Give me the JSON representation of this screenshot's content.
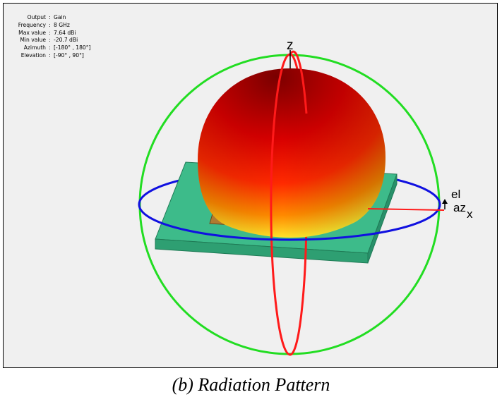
{
  "info": [
    {
      "key": "Output",
      "value": "Gain"
    },
    {
      "key": "Frequency",
      "value": "8 GHz"
    },
    {
      "key": "Max value",
      "value": "7.64 dBi"
    },
    {
      "key": "Min value",
      "value": "-20.7 dBi"
    },
    {
      "key": "Azimuth",
      "value": "[-180° , 180°]"
    },
    {
      "key": "Elevation",
      "value": "[-90° , 90°]"
    }
  ],
  "axes": {
    "z": "z",
    "x": "x",
    "el": "el",
    "az": "az"
  },
  "caption": "(b)  Radiation Pattern",
  "colors": {
    "elevation_circle": "#ff1a1a",
    "azimuth_circle": "#1010e0",
    "outer_circle": "#22dd22",
    "substrate": "#33bb88",
    "patch": "#b07a30"
  }
}
